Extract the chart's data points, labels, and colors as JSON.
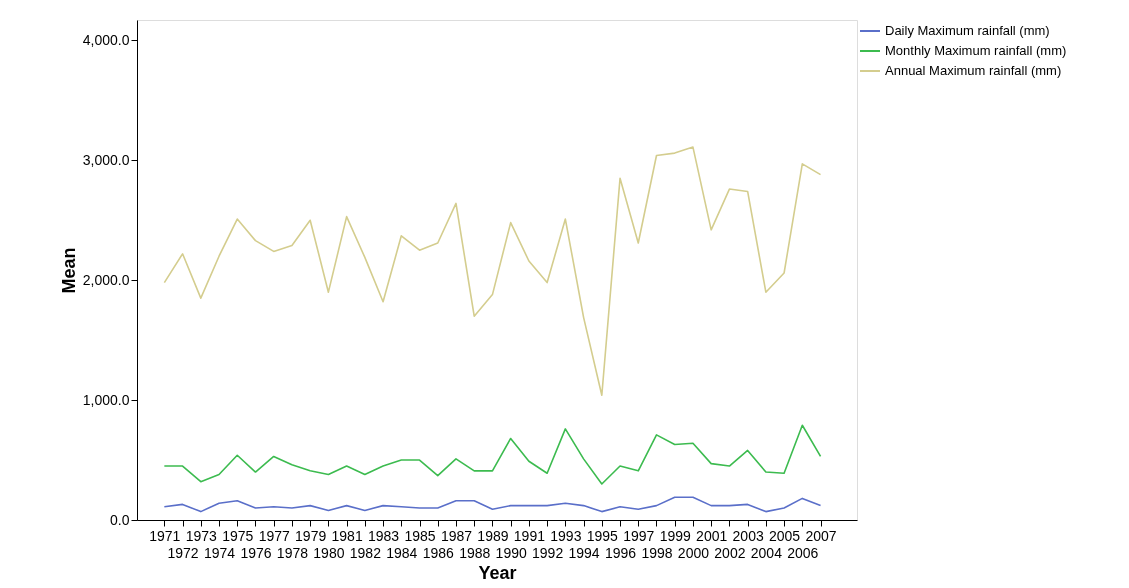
{
  "chart_data": {
    "type": "line",
    "xlabel": "Year",
    "ylabel": "Mean",
    "categories": [
      "1971",
      "1972",
      "1973",
      "1974",
      "1975",
      "1976",
      "1977",
      "1978",
      "1979",
      "1980",
      "1981",
      "1982",
      "1983",
      "1984",
      "1985",
      "1986",
      "1987",
      "1988",
      "1989",
      "1990",
      "1991",
      "1992",
      "1993",
      "1994",
      "1995",
      "1996",
      "1997",
      "1998",
      "1999",
      "2000",
      "2001",
      "2002",
      "2003",
      "2004",
      "2005",
      "2006",
      "2007"
    ],
    "series": [
      {
        "name": "Daily Maximum rainfall (mm)",
        "color": "#5a6fc9",
        "values": [
          110,
          130,
          70,
          140,
          160,
          100,
          110,
          100,
          120,
          80,
          120,
          80,
          120,
          110,
          100,
          100,
          160,
          160,
          90,
          120,
          120,
          120,
          140,
          120,
          70,
          110,
          90,
          120,
          190,
          190,
          120,
          120,
          130,
          70,
          100,
          180,
          120
        ]
      },
      {
        "name": "Monthly Maximum rainfall (mm)",
        "color": "#3cbb4f",
        "values": [
          450,
          450,
          320,
          380,
          540,
          400,
          530,
          460,
          410,
          380,
          450,
          380,
          450,
          500,
          500,
          370,
          510,
          410,
          410,
          680,
          490,
          390,
          760,
          510,
          300,
          450,
          410,
          710,
          630,
          640,
          470,
          450,
          580,
          400,
          390,
          790,
          530
        ]
      },
      {
        "name": "Annual Maximum rainfall (mm)",
        "color": "#d4cd8e",
        "values": [
          1980,
          2220,
          1850,
          2200,
          2510,
          2330,
          2240,
          2290,
          2500,
          1900,
          2530,
          2190,
          1820,
          2370,
          2250,
          2310,
          2640,
          1700,
          1880,
          2480,
          2160,
          1980,
          2510,
          1690,
          1040,
          2850,
          2310,
          3040,
          3060,
          3110,
          2420,
          2760,
          2740,
          1900,
          2060,
          2970,
          2880
        ]
      }
    ],
    "ylim": [
      0,
      4170
    ],
    "yticks": [
      {
        "value": 0,
        "label": "0.0"
      },
      {
        "value": 1000,
        "label": "1,000.0"
      },
      {
        "value": 2000,
        "label": "2,000.0"
      },
      {
        "value": 3000,
        "label": "3,000.0"
      },
      {
        "value": 4000,
        "label": "4,000.0"
      }
    ],
    "grid": false,
    "legend": "top right",
    "line_style": "solid",
    "marker": "none"
  }
}
